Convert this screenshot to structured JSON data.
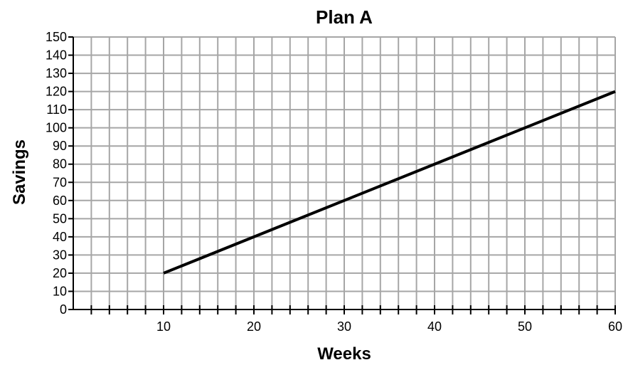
{
  "chart_data": {
    "type": "line",
    "title": "Plan A",
    "xlabel": "Weeks",
    "ylabel": "Savings",
    "xlim": [
      0,
      60
    ],
    "ylim": [
      0,
      150
    ],
    "x_grid_step": 2,
    "y_grid_step": 10,
    "x_tick_labels": [
      10,
      20,
      30,
      40,
      50,
      60
    ],
    "y_tick_labels": [
      0,
      10,
      20,
      30,
      40,
      50,
      60,
      70,
      80,
      90,
      100,
      110,
      120,
      130,
      140,
      150
    ],
    "grid": true,
    "legend": "none",
    "series": [
      {
        "x": [
          10,
          60
        ],
        "y": [
          20,
          120
        ]
      }
    ]
  },
  "colors": {
    "grid": "#a6a6a6",
    "axis": "#000000",
    "series": "#000000"
  }
}
